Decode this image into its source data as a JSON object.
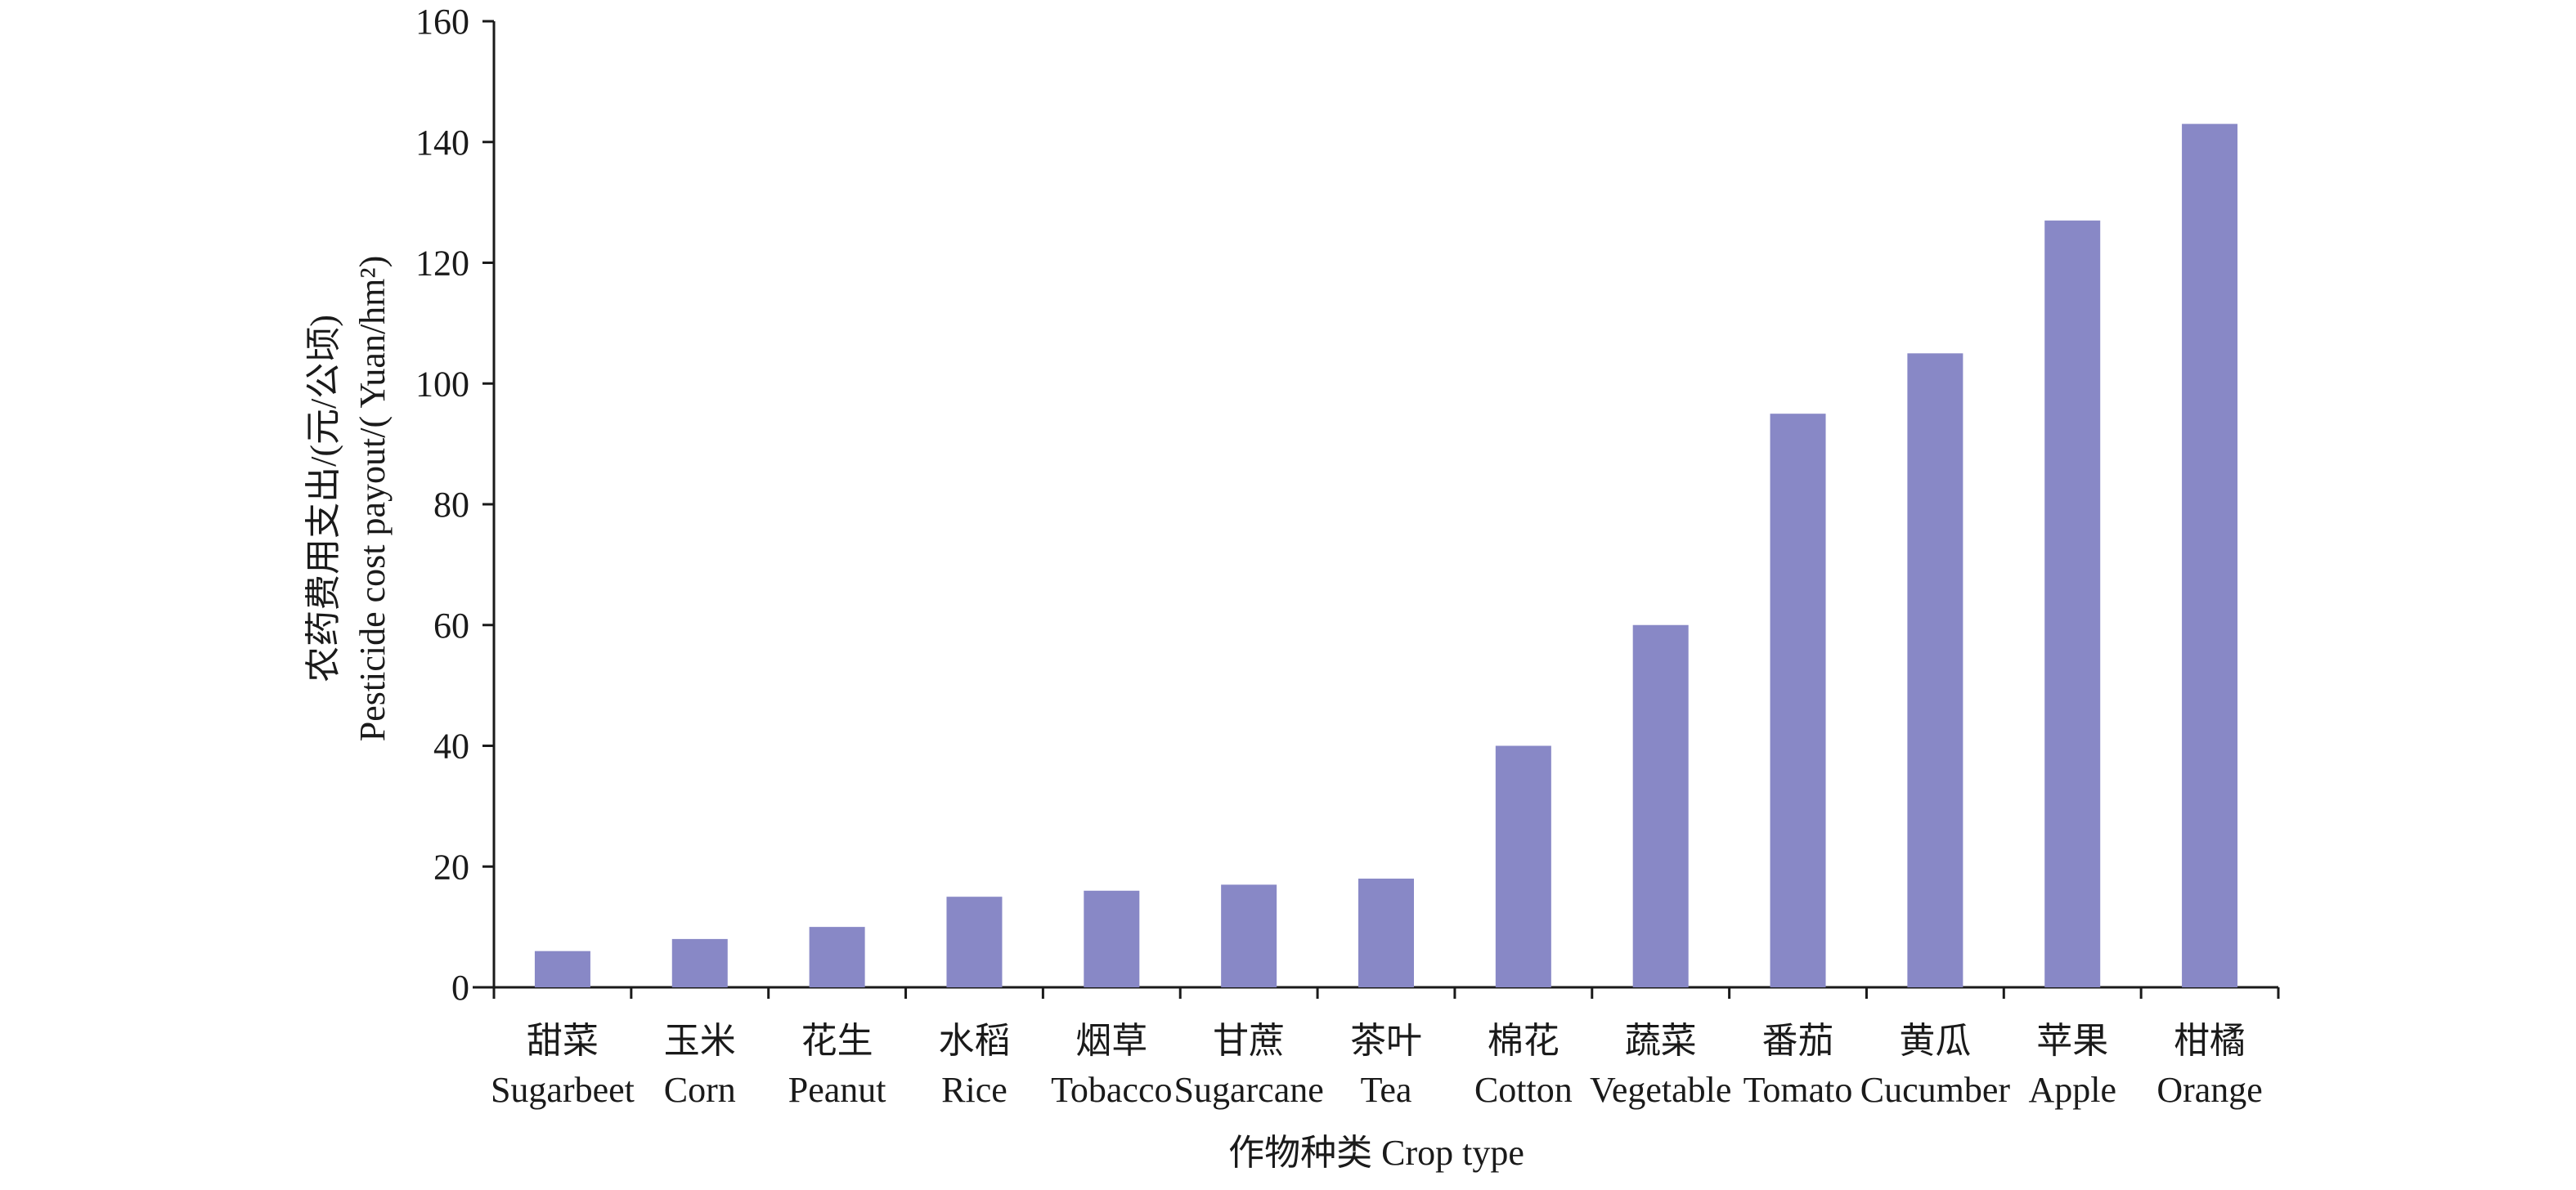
{
  "chart_data": {
    "type": "bar",
    "title": "",
    "ylabel_cn": "农药费用支出/(元/公顷)",
    "ylabel_en": "Pesticide cost payout/( Yuan/hm²)",
    "xlabel": "作物种类  Crop type",
    "ylim": [
      0,
      160
    ],
    "yticks": [
      "0",
      "20",
      "40",
      "60",
      "80",
      "100",
      "120",
      "140",
      "160"
    ],
    "bar_color": "#8888c6",
    "grid": false,
    "categories_cn": [
      "甜菜",
      "玉米",
      "花生",
      "水稻",
      "烟草",
      "甘蔗",
      "茶叶",
      "棉花",
      "蔬菜",
      "番茄",
      "黄瓜",
      "苹果",
      "柑橘"
    ],
    "categories": [
      "Sugarbeet",
      "Corn",
      "Peanut",
      "Rice",
      "Tobacco",
      "Sugarcane",
      "Tea",
      "Cotton",
      "Vegetable",
      "Tomato",
      "Cucumber",
      "Apple",
      "Orange"
    ],
    "values": [
      6,
      8,
      10,
      15,
      16,
      17,
      18,
      40,
      60,
      95,
      105,
      127,
      143
    ]
  }
}
